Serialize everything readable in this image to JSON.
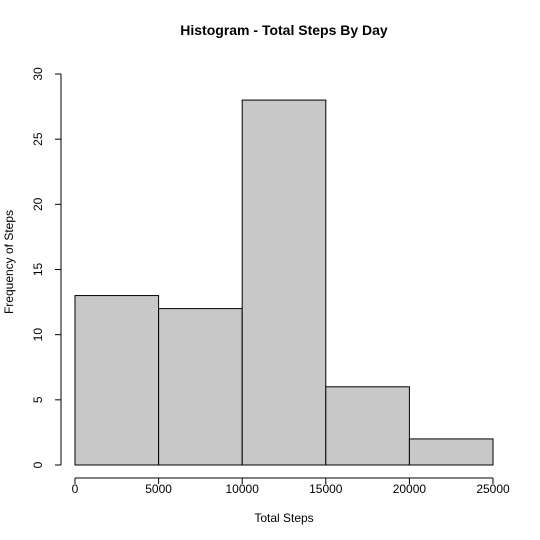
{
  "chart_data": {
    "type": "histogram",
    "title": "Histogram - Total Steps By Day",
    "xlabel": "Total Steps",
    "ylabel": "Frequency of Steps",
    "bins": [
      {
        "start": 0,
        "end": 5000,
        "count": 13
      },
      {
        "start": 5000,
        "end": 10000,
        "count": 12
      },
      {
        "start": 10000,
        "end": 15000,
        "count": 28
      },
      {
        "start": 15000,
        "end": 20000,
        "count": 6
      },
      {
        "start": 20000,
        "end": 25000,
        "count": 2
      }
    ],
    "xlim": [
      0,
      25000
    ],
    "ylim": [
      0,
      30
    ],
    "x_ticks": [
      "0",
      "5000",
      "10000",
      "15000",
      "20000",
      "25000"
    ],
    "y_ticks": [
      "0",
      "5",
      "10",
      "15",
      "20",
      "25",
      "30"
    ],
    "bar_fill": "#c8c8c8",
    "bar_stroke": "#000000",
    "grid": false,
    "legend": "none"
  }
}
